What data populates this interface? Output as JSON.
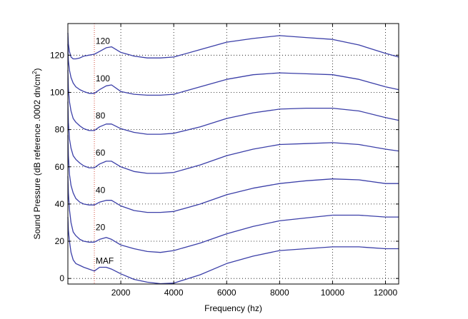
{
  "chart_data": {
    "type": "line",
    "title": "",
    "xlabel": "Frequency (hz)",
    "ylabel": "Sound Pressure (dB reference .0002 dn/cm",
    "ylabel_superscript": "2",
    "ylabel_close": ")",
    "xlim": [
      0,
      12500
    ],
    "ylim": [
      -3,
      137
    ],
    "xticks": [
      2000,
      4000,
      6000,
      8000,
      10000,
      12000
    ],
    "yticks": [
      0,
      20,
      40,
      60,
      80,
      100,
      120
    ],
    "grid": true,
    "grid_style": "dotted",
    "series_color": "#3b3fa8",
    "reference_line": {
      "x": 1000,
      "color": "#d44a3a",
      "style": "dotted"
    },
    "series": [
      {
        "label": "MAF",
        "x": [
          0,
          20,
          60,
          120,
          200,
          300,
          450,
          600,
          800,
          1000,
          1200,
          1450,
          1650,
          2000,
          2500,
          3000,
          3500,
          4000,
          5000,
          6000,
          7000,
          8000,
          9000,
          10000,
          11000,
          12000,
          12500
        ],
        "y": [
          33,
          26,
          20,
          14,
          10,
          8,
          7,
          6,
          5,
          4,
          6,
          6,
          5,
          2.5,
          -0.5,
          -2,
          -2.8,
          -2.5,
          2,
          8,
          12,
          15,
          16,
          17,
          17,
          16,
          16
        ]
      },
      {
        "label": "20",
        "x": [
          0,
          20,
          60,
          120,
          200,
          300,
          450,
          600,
          800,
          1000,
          1200,
          1450,
          1650,
          2000,
          2500,
          3000,
          3500,
          4000,
          5000,
          6000,
          7000,
          8000,
          9000,
          10000,
          11000,
          12000,
          12500
        ],
        "y": [
          55,
          46,
          37,
          30,
          25,
          23,
          21,
          20,
          19.5,
          19.5,
          21,
          22,
          21,
          18,
          16,
          14.5,
          14,
          15,
          19,
          24,
          28,
          31,
          32.5,
          34,
          34,
          33,
          33
        ]
      },
      {
        "label": "40",
        "x": [
          0,
          20,
          60,
          120,
          200,
          300,
          450,
          600,
          800,
          1000,
          1200,
          1450,
          1650,
          2000,
          2500,
          3000,
          3500,
          4000,
          5000,
          6000,
          7000,
          8000,
          9000,
          10000,
          11000,
          12000,
          12500
        ],
        "y": [
          77,
          66,
          56,
          50,
          46,
          43,
          41,
          40,
          39.5,
          39.5,
          41,
          42,
          42,
          39,
          36.5,
          35.5,
          35.5,
          36,
          40,
          45,
          48.5,
          51,
          52.5,
          53.5,
          53,
          51,
          51
        ]
      },
      {
        "label": "60",
        "x": [
          0,
          20,
          60,
          120,
          200,
          300,
          450,
          600,
          800,
          1000,
          1200,
          1450,
          1650,
          2000,
          2500,
          3000,
          3500,
          4000,
          5000,
          6000,
          7000,
          8000,
          9000,
          10000,
          11000,
          12000,
          12500
        ],
        "y": [
          95,
          84,
          75,
          70,
          66,
          64,
          62,
          60.5,
          59.5,
          59.5,
          61.5,
          63,
          63,
          60,
          57.5,
          56.5,
          56.5,
          57,
          61,
          66,
          69.5,
          72,
          72.5,
          73,
          72,
          69.5,
          68.5
        ]
      },
      {
        "label": "80",
        "x": [
          0,
          20,
          60,
          120,
          200,
          300,
          450,
          600,
          800,
          1000,
          1200,
          1450,
          1650,
          2000,
          2500,
          3000,
          3500,
          4000,
          5000,
          6000,
          7000,
          8000,
          9000,
          10000,
          11000,
          12000,
          12500
        ],
        "y": [
          112,
          102,
          95,
          90,
          86,
          84,
          82,
          80.5,
          79.5,
          79.5,
          81.5,
          83,
          83,
          80.5,
          78.5,
          77.5,
          77.5,
          78,
          81.5,
          86,
          89,
          91,
          91.5,
          91.5,
          90,
          86.5,
          85
        ]
      },
      {
        "label": "100",
        "x": [
          0,
          20,
          60,
          120,
          200,
          300,
          450,
          600,
          800,
          1000,
          1200,
          1450,
          1650,
          2000,
          2500,
          3000,
          3500,
          4000,
          5000,
          6000,
          7000,
          8000,
          9000,
          10000,
          11000,
          12000,
          12500
        ],
        "y": [
          126,
          117,
          112,
          108,
          105,
          103,
          101.5,
          100.5,
          99.5,
          99.5,
          101.5,
          103.5,
          104,
          100.5,
          99,
          98.5,
          98.5,
          99,
          103,
          107,
          109.5,
          110.5,
          110,
          109.5,
          107,
          103,
          101.5
        ]
      },
      {
        "label": "120",
        "x": [
          0,
          20,
          60,
          120,
          200,
          300,
          450,
          600,
          800,
          1000,
          1200,
          1450,
          1650,
          2000,
          2500,
          3000,
          3500,
          4000,
          5000,
          6000,
          7000,
          8000,
          9000,
          10000,
          11000,
          12000,
          12500
        ],
        "y": [
          132,
          126,
          122,
          119,
          118,
          118,
          118.5,
          119.5,
          120,
          120.5,
          122,
          124,
          124.5,
          121.5,
          119.5,
          118.5,
          118.5,
          119,
          123,
          127,
          129,
          130.5,
          129.5,
          128.5,
          125.5,
          121,
          119
        ]
      }
    ],
    "curve_labels": [
      {
        "text": "120",
        "x": 1050,
        "y": 126
      },
      {
        "text": "100",
        "x": 1050,
        "y": 106
      },
      {
        "text": "80",
        "x": 1050,
        "y": 86
      },
      {
        "text": "60",
        "x": 1050,
        "y": 66
      },
      {
        "text": "40",
        "x": 1050,
        "y": 46
      },
      {
        "text": "20",
        "x": 1050,
        "y": 26
      },
      {
        "text": "MAF",
        "x": 1050,
        "y": 8
      }
    ]
  }
}
